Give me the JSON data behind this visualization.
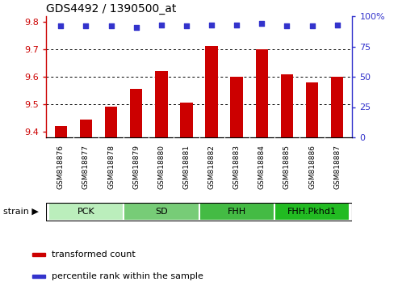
{
  "title": "GDS4492 / 1390500_at",
  "samples": [
    "GSM818876",
    "GSM818877",
    "GSM818878",
    "GSM818879",
    "GSM818880",
    "GSM818881",
    "GSM818882",
    "GSM818883",
    "GSM818884",
    "GSM818885",
    "GSM818886",
    "GSM818887"
  ],
  "transformed_counts": [
    9.42,
    9.445,
    9.49,
    9.555,
    9.62,
    9.505,
    9.71,
    9.6,
    9.7,
    9.61,
    9.58,
    9.6
  ],
  "percentile_ranks": [
    92,
    92,
    92,
    91,
    93,
    92,
    93,
    93,
    94,
    92,
    92,
    93
  ],
  "groups": [
    {
      "label": "PCK",
      "start": 0,
      "end": 2
    },
    {
      "label": "SD",
      "start": 3,
      "end": 5
    },
    {
      "label": "FHH",
      "start": 6,
      "end": 8
    },
    {
      "label": "FHH.Pkhd1",
      "start": 9,
      "end": 11
    }
  ],
  "group_colors": [
    "#bbeebc",
    "#77cc77",
    "#44bb44",
    "#22bb22"
  ],
  "ylim_left": [
    9.38,
    9.82
  ],
  "ylim_right": [
    0,
    100
  ],
  "yticks_left": [
    9.4,
    9.5,
    9.6,
    9.7,
    9.8
  ],
  "yticks_right": [
    0,
    25,
    50,
    75,
    100
  ],
  "bar_color": "#cc0000",
  "dot_color": "#3333cc",
  "bar_width": 0.5,
  "legend_items": [
    {
      "label": "transformed count",
      "color": "#cc0000"
    },
    {
      "label": "percentile rank within the sample",
      "color": "#3333cc"
    }
  ],
  "xtick_bg": "#cccccc",
  "plot_bg": "#ffffff"
}
